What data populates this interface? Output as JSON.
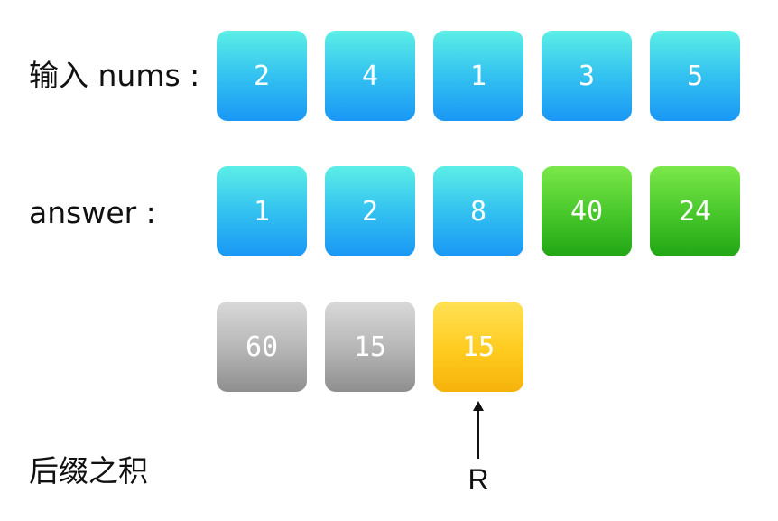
{
  "labels": {
    "nums": "输入 nums :",
    "answer": "answer :",
    "suffix": "后缀之积"
  },
  "rows": {
    "nums": [
      {
        "value": "2",
        "color": "blue"
      },
      {
        "value": "4",
        "color": "blue"
      },
      {
        "value": "1",
        "color": "blue"
      },
      {
        "value": "3",
        "color": "blue"
      },
      {
        "value": "5",
        "color": "blue"
      }
    ],
    "answer": [
      {
        "value": "1",
        "color": "blue"
      },
      {
        "value": "2",
        "color": "blue"
      },
      {
        "value": "8",
        "color": "blue"
      },
      {
        "value": "40",
        "color": "green"
      },
      {
        "value": "24",
        "color": "green"
      }
    ],
    "suffix": [
      {
        "value": "60",
        "color": "gray"
      },
      {
        "value": "15",
        "color": "gray"
      },
      {
        "value": "15",
        "color": "yellow"
      }
    ]
  },
  "pointer": {
    "label": "R"
  },
  "colors": {
    "blue": "#1a97f5",
    "green": "#22a615",
    "gray": "#8e8e8e",
    "yellow": "#ffcb1f"
  }
}
